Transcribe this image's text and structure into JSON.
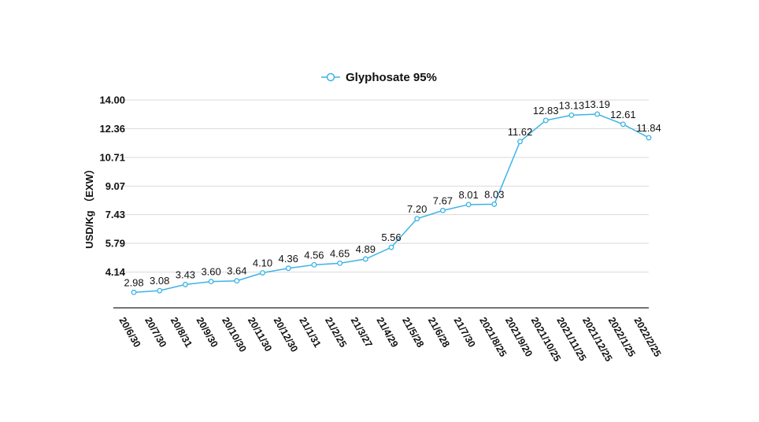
{
  "chart_data": {
    "type": "line",
    "title": "",
    "xlabel": "",
    "ylabel": "USD/Kg （EXW）",
    "ylim": [
      2.5,
      14.0
    ],
    "yticks": [
      "4.14",
      "5.79",
      "7.43",
      "9.07",
      "10.71",
      "12.36",
      "14.00"
    ],
    "grid": true,
    "legend_position": "top-center",
    "categories": [
      "20/6/30",
      "20/7/30",
      "20/8/31",
      "20/9/30",
      "20/10/30",
      "20/11/30",
      "20/12/30",
      "21/1/31",
      "21/2/25",
      "21/3/27",
      "21/4/29",
      "21/5/28",
      "21/6/28",
      "21/7/30",
      "2021/8/25",
      "2021/9/20",
      "2021/10/25",
      "2021/11/25",
      "2021/12/25",
      "2022/1/25",
      "2022/2/25"
    ],
    "series": [
      {
        "name": "Glyphosate 95%",
        "color": "#3cb4e6",
        "values": [
          2.98,
          3.08,
          3.43,
          3.6,
          3.64,
          4.1,
          4.36,
          4.56,
          4.65,
          4.89,
          5.56,
          7.2,
          7.67,
          8.01,
          8.03,
          11.62,
          12.83,
          13.13,
          13.19,
          12.61,
          11.84
        ],
        "labels": [
          "2.98",
          "3.08",
          "3.43",
          "3.60",
          "3.64",
          "4.10",
          "4.36",
          "4.56",
          "4.65",
          "4.89",
          "5.56",
          "7.20",
          "7.67",
          "8.01",
          "8.03",
          "11.62",
          "12.83",
          "13.13",
          "13.19",
          "12.61",
          "11.84"
        ]
      }
    ]
  }
}
